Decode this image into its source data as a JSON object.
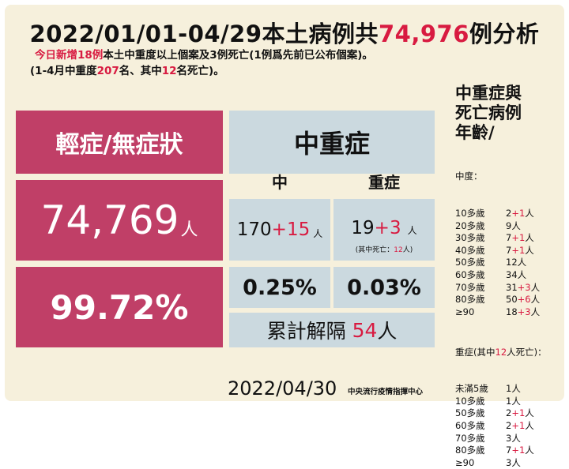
{
  "title": {
    "prefix": "2022/01/01-04/29本土病例共",
    "total": "74,976",
    "suffix": "例分析"
  },
  "subtitle1": {
    "red": "今日新增18例",
    "rest": "本土中重度以上個案及3例死亡(1例爲先前已公布個案)。"
  },
  "subtitle2": {
    "p1": "(1-4月中重度",
    "n1": "207",
    "p2": "名、其中",
    "n2": "12",
    "p3": "名死亡)。"
  },
  "mild": {
    "header": "輕症/無症狀",
    "count": "74,769",
    "count_unit": "人",
    "percent": "99.72%"
  },
  "severe": {
    "header": "中重症",
    "moderate_label": "中",
    "severe_label": "重症",
    "moderate_count": "170",
    "moderate_add": "+15",
    "moderate_unit": "人",
    "severe_count": "19",
    "severe_add": "+3",
    "severe_unit": "人",
    "severe_death_note_prefix": "(其中死亡：",
    "severe_death_note_num": "12",
    "severe_death_note_suffix": "人)",
    "moderate_percent": "0.25%",
    "severe_percent": "0.03%",
    "released_label": "累計解隔",
    "released_count": "54",
    "released_unit": "人"
  },
  "sidebar": {
    "title_lines": [
      "中重症與",
      "死亡病例",
      "年齡/"
    ],
    "moderate_header": "中度：",
    "moderate_rows": [
      {
        "age": "10多歲",
        "count": "2",
        "add": "+1",
        "unit": "人"
      },
      {
        "age": "20多歲",
        "count": "9人",
        "add": "",
        "unit": ""
      },
      {
        "age": "30多歲",
        "count": "7",
        "add": "+1",
        "unit": "人"
      },
      {
        "age": "40多歲",
        "count": "7",
        "add": "+1",
        "unit": "人"
      },
      {
        "age": "50多歲",
        "count": "12人",
        "add": "",
        "unit": ""
      },
      {
        "age": "60多歲",
        "count": "34人",
        "add": "",
        "unit": ""
      },
      {
        "age": "70多歲",
        "count": "31",
        "add": "+3",
        "unit": "人"
      },
      {
        "age": "80多歲",
        "count": "50",
        "add": "+6",
        "unit": "人"
      },
      {
        "age": "≥90",
        "count": "18",
        "add": "+3",
        "unit": "人"
      }
    ],
    "severe_header_prefix": "重症(其中",
    "severe_header_num": "12",
    "severe_header_suffix": "人死亡)：",
    "severe_rows": [
      {
        "age": "未滿5歲",
        "count": "1人",
        "add": "",
        "unit": ""
      },
      {
        "age": "10多歲",
        "count": "1人",
        "add": "",
        "unit": ""
      },
      {
        "age": "50多歲",
        "count": "2",
        "add": "+1",
        "unit": "人"
      },
      {
        "age": "60多歲",
        "count": "2",
        "add": "+1",
        "unit": "人"
      },
      {
        "age": "70多歲",
        "count": "3人",
        "add": "",
        "unit": ""
      },
      {
        "age": "80多歲",
        "count": "7",
        "add": "+1",
        "unit": "人"
      },
      {
        "age": "≥90",
        "count": "3人",
        "add": "",
        "unit": ""
      }
    ]
  },
  "footer": {
    "date": "2022/04/30",
    "org": "中央流行疫情指揮中心"
  }
}
